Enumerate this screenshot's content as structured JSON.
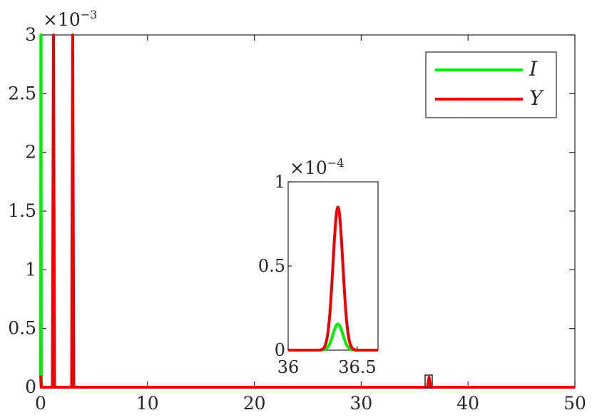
{
  "chart_data": [
    {
      "type": "line",
      "role": "main",
      "x_scale": 1,
      "y_scale_label": "×10",
      "y_scale_exponent": "−3",
      "xlim": [
        0,
        50
      ],
      "ylim": [
        0,
        3
      ],
      "xticks": [
        "0",
        "10",
        "20",
        "30",
        "40",
        "50"
      ],
      "yticks": [
        "0",
        "0.5",
        "1",
        "1.5",
        "2",
        "2.5",
        "3"
      ],
      "grid": false,
      "legend": "top-right",
      "series": [
        {
          "name": "I",
          "color": "#00ee00",
          "x": [
            0,
            0.02,
            0.04,
            0.06,
            0.1,
            1,
            5,
            20,
            36.2,
            36.35,
            36.5,
            50
          ],
          "y": [
            0.1,
            3.0,
            3.0,
            0.1,
            0,
            0,
            0,
            0,
            0,
            0.015,
            0,
            0
          ]
        },
        {
          "name": "Y",
          "color": "#ee0000",
          "x": [
            0,
            0.05,
            1.1,
            1.2,
            1.3,
            2.9,
            3.0,
            3.1,
            10,
            20,
            36.2,
            36.35,
            36.5,
            50
          ],
          "y": [
            0.1,
            0,
            0,
            3.0,
            0,
            0,
            3.0,
            0,
            0,
            0,
            0,
            0.085,
            0,
            0
          ]
        }
      ]
    },
    {
      "type": "line",
      "role": "inset",
      "y_scale_label": "×10",
      "y_scale_exponent": "−4",
      "xlim": [
        36,
        36.65
      ],
      "ylim": [
        0,
        1
      ],
      "xticks": [
        "36",
        "36.5"
      ],
      "yticks": [
        "0",
        "0.5",
        "1"
      ],
      "series": [
        {
          "name": "I",
          "color": "#00ee00",
          "peak_x": 36.36,
          "peak_y": 0.155,
          "width": 0.05
        },
        {
          "name": "Y",
          "color": "#ee0000",
          "peak_x": 36.36,
          "peak_y": 0.85,
          "width": 0.05
        }
      ]
    }
  ]
}
